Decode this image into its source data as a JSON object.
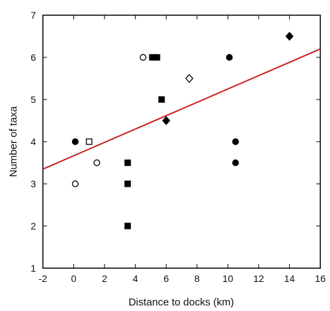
{
  "chart_data": {
    "type": "scatter",
    "title": "",
    "xlabel": "Distance to docks (km)",
    "ylabel": "Number of taxa",
    "xlim": [
      -2,
      16
    ],
    "ylim": [
      1,
      7
    ],
    "xticks": [
      -2,
      0,
      2,
      4,
      6,
      8,
      10,
      12,
      14,
      16
    ],
    "yticks": [
      1,
      2,
      3,
      4,
      5,
      6,
      7
    ],
    "xtick_labels": [
      "-2",
      "0",
      "2",
      "4",
      "6",
      "8",
      "10",
      "12",
      "14",
      "16"
    ],
    "ytick_labels": [
      "1",
      "2",
      "3",
      "4",
      "5",
      "6",
      "7"
    ],
    "grid": false,
    "legend": "none",
    "points": [
      {
        "x": 0.1,
        "y": 4.0,
        "marker": "filled-circle"
      },
      {
        "x": 0.1,
        "y": 3.0,
        "marker": "open-circle"
      },
      {
        "x": 1.0,
        "y": 4.0,
        "marker": "open-square"
      },
      {
        "x": 1.5,
        "y": 3.5,
        "marker": "open-circle"
      },
      {
        "x": 3.5,
        "y": 3.5,
        "marker": "filled-square"
      },
      {
        "x": 3.5,
        "y": 3.0,
        "marker": "filled-square"
      },
      {
        "x": 3.5,
        "y": 2.0,
        "marker": "filled-square"
      },
      {
        "x": 4.5,
        "y": 6.0,
        "marker": "open-circle"
      },
      {
        "x": 5.1,
        "y": 6.0,
        "marker": "filled-square"
      },
      {
        "x": 5.4,
        "y": 6.0,
        "marker": "filled-square"
      },
      {
        "x": 5.7,
        "y": 5.0,
        "marker": "filled-square"
      },
      {
        "x": 6.0,
        "y": 4.5,
        "marker": "filled-diamond"
      },
      {
        "x": 7.5,
        "y": 5.5,
        "marker": "open-diamond"
      },
      {
        "x": 10.1,
        "y": 6.0,
        "marker": "filled-circle"
      },
      {
        "x": 10.5,
        "y": 4.0,
        "marker": "filled-circle"
      },
      {
        "x": 10.5,
        "y": 3.5,
        "marker": "filled-circle"
      },
      {
        "x": 14.0,
        "y": 6.5,
        "marker": "filled-diamond"
      }
    ],
    "fit_line": {
      "x": [
        -2,
        16
      ],
      "y": [
        3.35,
        6.2
      ],
      "color": "#cc2222"
    },
    "marker_color": "#000000",
    "axis_color": "#000000"
  }
}
